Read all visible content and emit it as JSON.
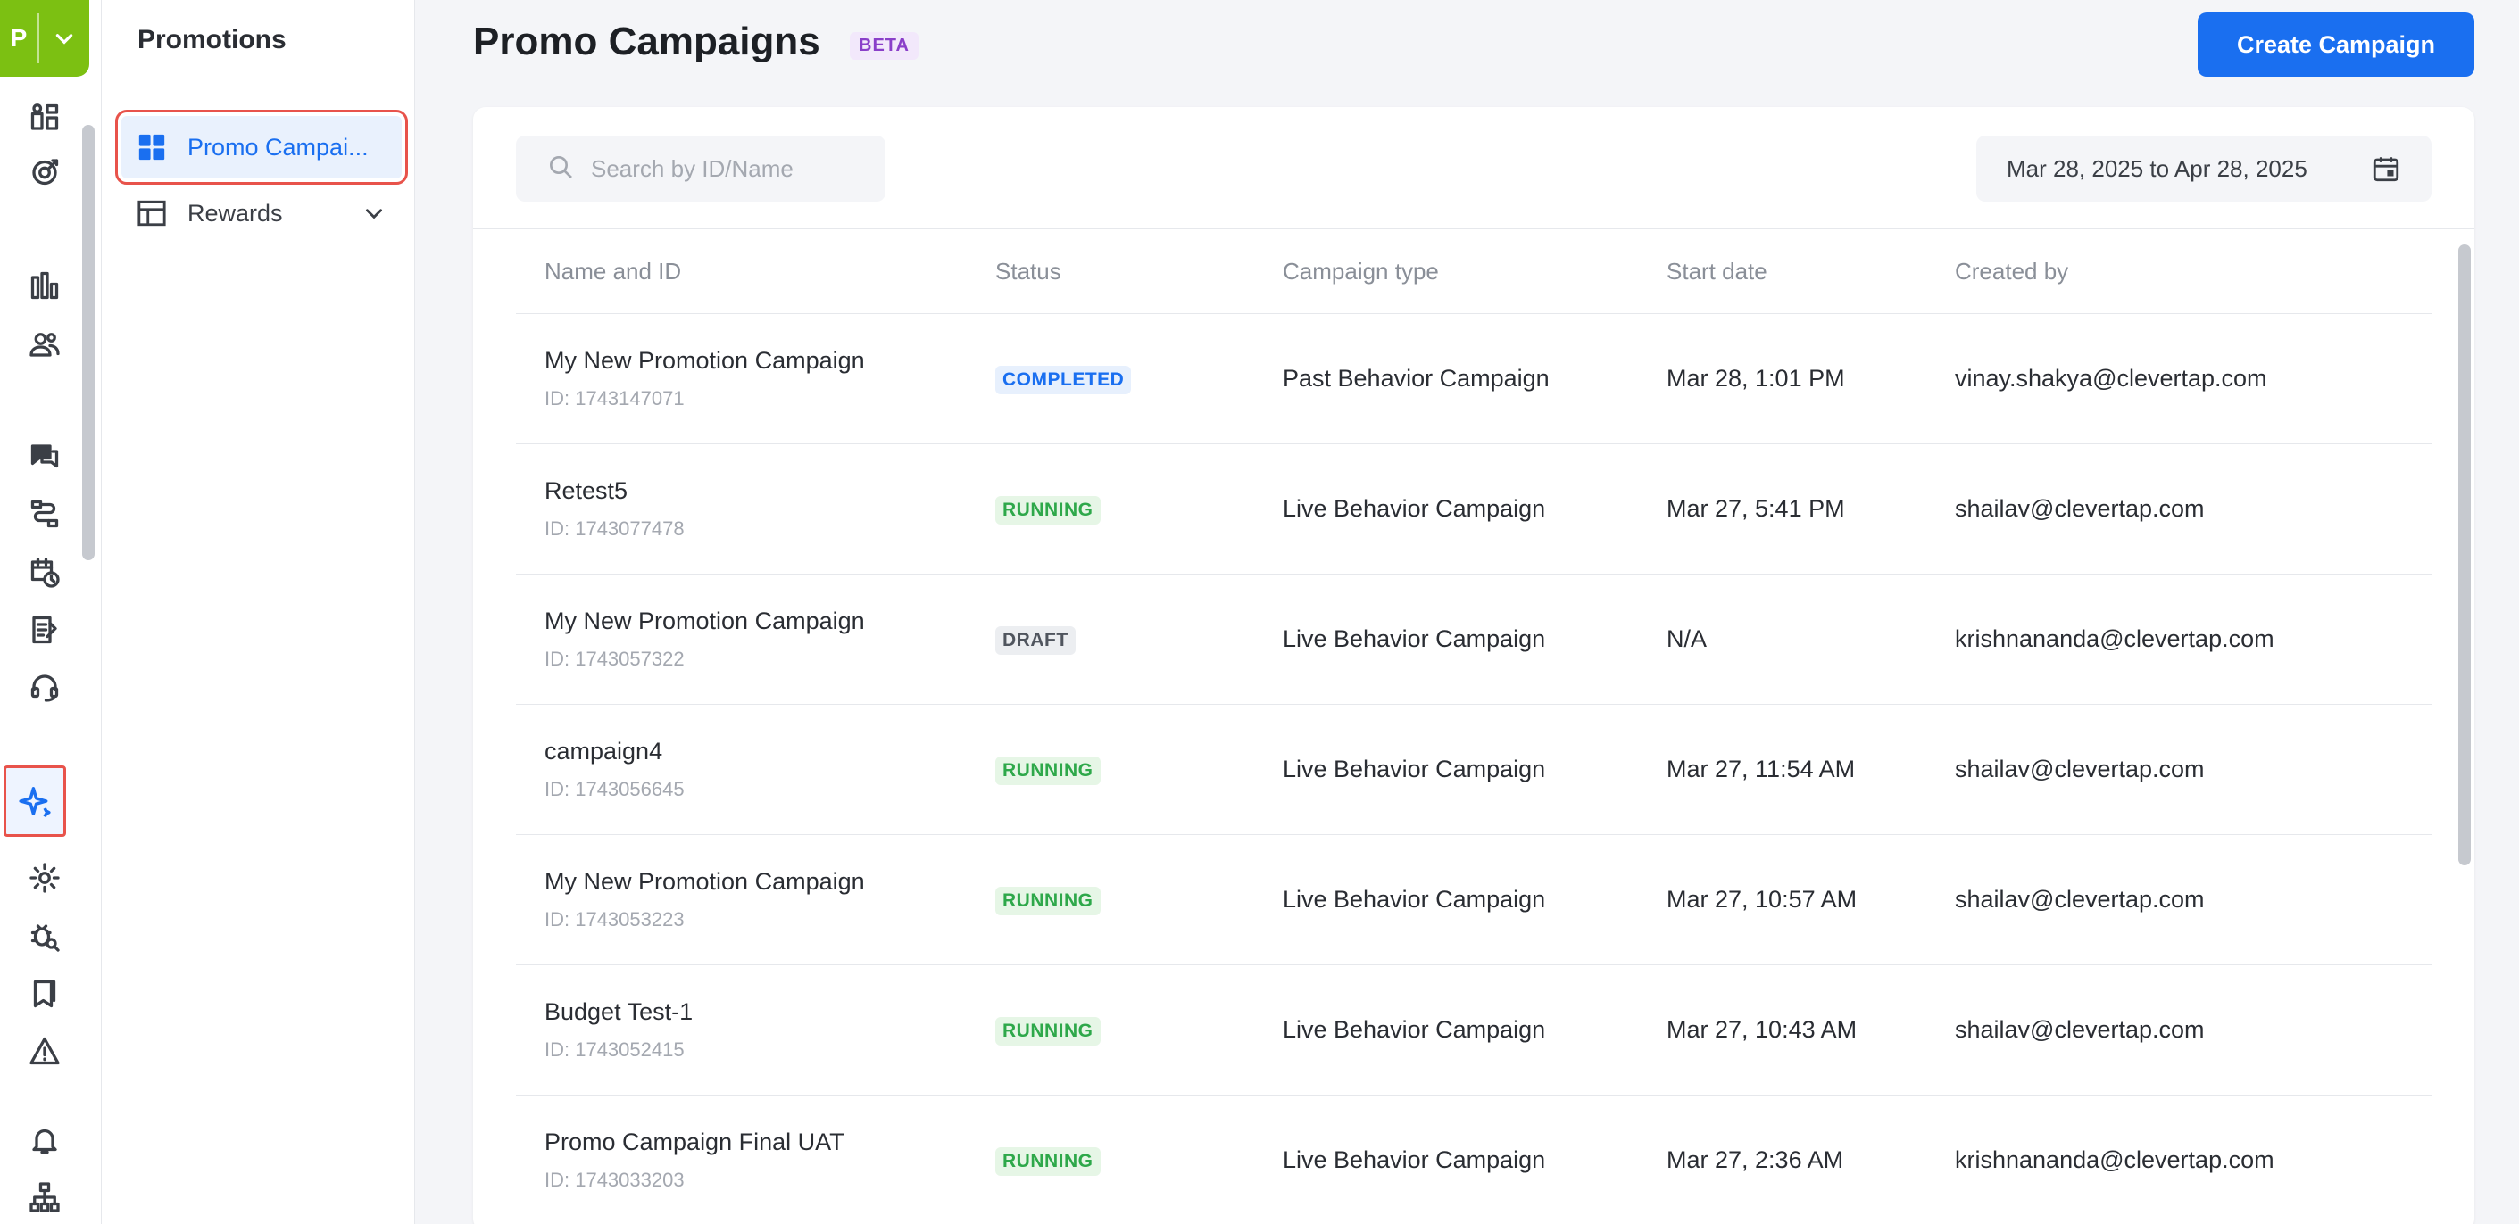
{
  "project": {
    "initial": "P"
  },
  "rail_icons": [
    "dashboard-icon",
    "target-icon",
    "analytics-icon",
    "segments-icon",
    "messages-icon",
    "journeys-icon",
    "schedule-icon",
    "catalog-icon",
    "support-icon",
    "promotions-sparkle-icon",
    "settings-icon",
    "debug-icon",
    "bookmark-icon",
    "alert-icon",
    "notifications-icon",
    "hierarchy-icon"
  ],
  "subnav": {
    "title": "Promotions",
    "items": [
      {
        "label": "Promo Campai...",
        "icon": "grid-icon",
        "active": true
      },
      {
        "label": "Rewards",
        "icon": "table-layout-icon",
        "active": false
      }
    ]
  },
  "header": {
    "title": "Promo Campaigns",
    "badge": "BETA",
    "create_label": "Create Campaign"
  },
  "filters": {
    "search_placeholder": "Search by ID/Name",
    "date_range": "Mar 28, 2025 to Apr 28, 2025"
  },
  "table": {
    "columns": [
      "Name and ID",
      "Status",
      "Campaign type",
      "Start date",
      "Created by"
    ],
    "rows": [
      {
        "name": "My New Promotion Campaign",
        "id": "ID: 1743147071",
        "status": "COMPLETED",
        "type": "Past Behavior Campaign",
        "start": "Mar 28, 1:01 PM",
        "creator": "vinay.shakya@clevertap.com"
      },
      {
        "name": "Retest5",
        "id": "ID: 1743077478",
        "status": "RUNNING",
        "type": "Live Behavior Campaign",
        "start": "Mar 27, 5:41 PM",
        "creator": "shailav@clevertap.com"
      },
      {
        "name": "My New Promotion Campaign",
        "id": "ID: 1743057322",
        "status": "DRAFT",
        "type": "Live Behavior Campaign",
        "start": "N/A",
        "creator": "krishnananda@clevertap.com"
      },
      {
        "name": "campaign4",
        "id": "ID: 1743056645",
        "status": "RUNNING",
        "type": "Live Behavior Campaign",
        "start": "Mar 27, 11:54 AM",
        "creator": "shailav@clevertap.com"
      },
      {
        "name": "My New Promotion Campaign",
        "id": "ID: 1743053223",
        "status": "RUNNING",
        "type": "Live Behavior Campaign",
        "start": "Mar 27, 10:57 AM",
        "creator": "shailav@clevertap.com"
      },
      {
        "name": "Budget Test-1",
        "id": "ID: 1743052415",
        "status": "RUNNING",
        "type": "Live Behavior Campaign",
        "start": "Mar 27, 10:43 AM",
        "creator": "shailav@clevertap.com"
      },
      {
        "name": "Promo Campaign Final UAT",
        "id": "ID: 1743033203",
        "status": "RUNNING",
        "type": "Live Behavior Campaign",
        "start": "Mar 27, 2:36 AM",
        "creator": "krishnananda@clevertap.com"
      }
    ]
  },
  "colors": {
    "accent": "#1a6ff0",
    "brand": "#7cc012",
    "highlight": "#e8534b"
  }
}
